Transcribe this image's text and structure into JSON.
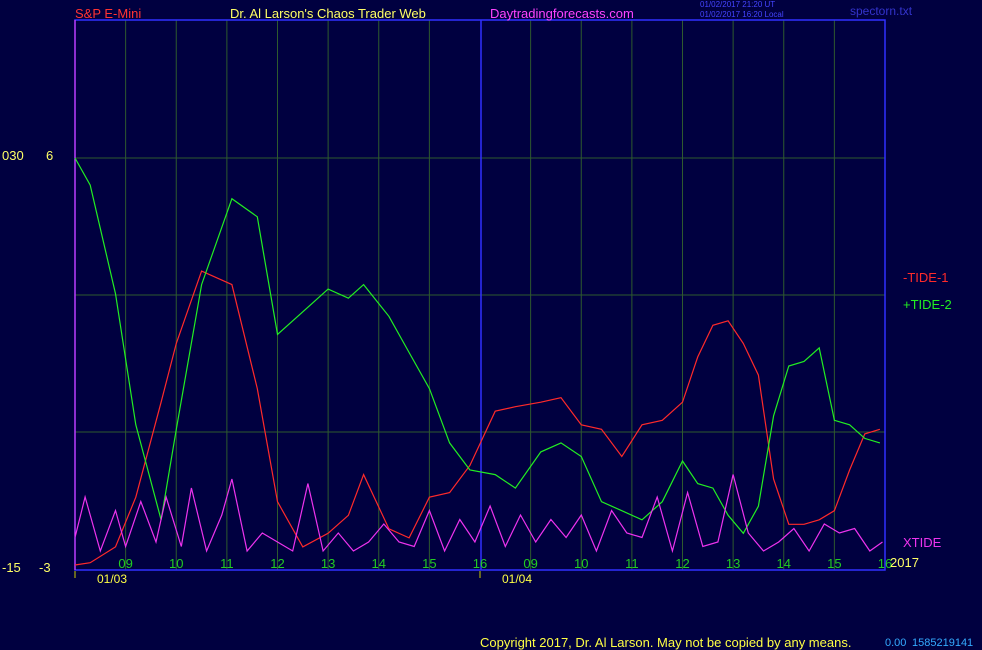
{
  "header": {
    "symbol": "S&P E-Mini",
    "author": "Dr. Al Larson's Chaos Trader Web",
    "site": "Daytradingforecasts.com",
    "stamp_up": "01/02/2017 21:20 UT",
    "stamp_local": "01/02/2017 16:20 Local",
    "file": "spectorn.txt"
  },
  "footer": {
    "copyright": "Copyright 2017, Dr. Al Larson. May not be copied by any means.",
    "code_a": "0.00",
    "code_b": "1585219141"
  },
  "axis_left": {
    "upper_outer": "030",
    "upper_inner": "6",
    "lower_outer": "-15",
    "lower_inner": "-3"
  },
  "year": "2017",
  "colors": {
    "background": "#000040",
    "frame": "#3030ff",
    "grid": "#2e5a2e",
    "tide1": "#ff2a2a",
    "tide2": "#22ee22",
    "xtide": "#ee33ee",
    "hour_label": "#22cc22",
    "date_label": "#ffff44",
    "header_symbol": "#ff3333",
    "header_author": "#ffff66",
    "header_site": "#ff44ff",
    "stamp": "#4444ff"
  },
  "chart_data": {
    "type": "line",
    "x_unit": "hour",
    "days": [
      {
        "date": "01/03",
        "hours": [
          "09",
          "10",
          "11",
          "12",
          "13",
          "14",
          "15",
          "16"
        ]
      },
      {
        "date": "01/04",
        "hours": [
          "09",
          "10",
          "11",
          "12",
          "13",
          "14",
          "15",
          "16"
        ]
      }
    ],
    "ylim_upper": [
      -3,
      6
    ],
    "series": [
      {
        "name": "-TIDE-1",
        "x": [
          0,
          0.3,
          0.8,
          1.2,
          1.7,
          2.0,
          2.5,
          3.1,
          3.6,
          4.0,
          4.5,
          5.0,
          5.4,
          5.7,
          6.2,
          6.6,
          7.0,
          7.4,
          7.8,
          8.3,
          8.7,
          9.2,
          9.6,
          10.0,
          10.4,
          10.8,
          11.2,
          11.6,
          12.0,
          12.3,
          12.6,
          12.9,
          13.2,
          13.5,
          13.8,
          14.1,
          14.4,
          14.7,
          15.0,
          15.3,
          15.6,
          15.9
        ],
        "values": [
          -3,
          -2.95,
          -2.6,
          -1.5,
          0.6,
          1.9,
          3.5,
          3.2,
          0.9,
          -1.6,
          -2.6,
          -2.3,
          -1.9,
          -1.0,
          -2.2,
          -2.4,
          -1.5,
          -1.4,
          -0.8,
          0.4,
          0.5,
          0.6,
          0.7,
          0.1,
          0.0,
          -0.6,
          0.1,
          0.2,
          0.6,
          1.6,
          2.3,
          2.4,
          1.9,
          1.2,
          -1.1,
          -2.1,
          -2.1,
          -2.0,
          -1.8,
          -0.9,
          -0.1,
          0.0
        ]
      },
      {
        "name": "+TIDE-2",
        "x": [
          0,
          0.3,
          0.8,
          1.2,
          1.7,
          2.0,
          2.5,
          3.1,
          3.6,
          4.0,
          4.5,
          5.0,
          5.4,
          5.7,
          6.2,
          6.6,
          7.0,
          7.4,
          7.8,
          8.3,
          8.7,
          9.2,
          9.6,
          10.0,
          10.4,
          10.8,
          11.2,
          11.6,
          12.0,
          12.3,
          12.6,
          12.9,
          13.2,
          13.5,
          13.8,
          14.1,
          14.4,
          14.7,
          15.0,
          15.3,
          15.6,
          15.9
        ],
        "values": [
          6,
          5.4,
          3.0,
          0.1,
          -2.0,
          0.0,
          3.2,
          5.1,
          4.7,
          2.1,
          2.6,
          3.1,
          2.9,
          3.2,
          2.5,
          1.7,
          0.9,
          -0.3,
          -0.9,
          -1.0,
          -1.3,
          -0.5,
          -0.3,
          -0.6,
          -1.6,
          -1.8,
          -2.0,
          -1.6,
          -0.7,
          -1.2,
          -1.3,
          -1.9,
          -2.3,
          -1.7,
          0.3,
          1.4,
          1.5,
          1.8,
          0.2,
          0.1,
          -0.2,
          -0.3
        ]
      },
      {
        "name": "XTIDE",
        "x": [
          0,
          0.2,
          0.5,
          0.8,
          1.0,
          1.3,
          1.6,
          1.8,
          2.1,
          2.3,
          2.6,
          2.9,
          3.1,
          3.4,
          3.7,
          4.0,
          4.3,
          4.6,
          4.9,
          5.2,
          5.5,
          5.8,
          6.1,
          6.4,
          6.7,
          7.0,
          7.3,
          7.6,
          7.9,
          8.2,
          8.5,
          8.8,
          9.1,
          9.4,
          9.7,
          10.0,
          10.3,
          10.6,
          10.9,
          11.2,
          11.5,
          11.8,
          12.1,
          12.4,
          12.7,
          13.0,
          13.3,
          13.6,
          13.9,
          14.2,
          14.5,
          14.8,
          15.1,
          15.4,
          15.7,
          15.95
        ],
        "values": [
          0.25,
          0.7,
          0.1,
          0.55,
          0.15,
          0.65,
          0.2,
          0.7,
          0.15,
          0.8,
          0.1,
          0.5,
          0.9,
          0.1,
          0.3,
          0.2,
          0.1,
          0.85,
          0.1,
          0.3,
          0.1,
          0.2,
          0.4,
          0.2,
          0.15,
          0.55,
          0.1,
          0.45,
          0.2,
          0.6,
          0.15,
          0.5,
          0.2,
          0.45,
          0.25,
          0.5,
          0.1,
          0.55,
          0.3,
          0.25,
          0.7,
          0.1,
          0.75,
          0.15,
          0.2,
          0.95,
          0.3,
          0.1,
          0.2,
          0.35,
          0.1,
          0.4,
          0.3,
          0.35,
          0.1,
          0.2
        ]
      }
    ]
  }
}
